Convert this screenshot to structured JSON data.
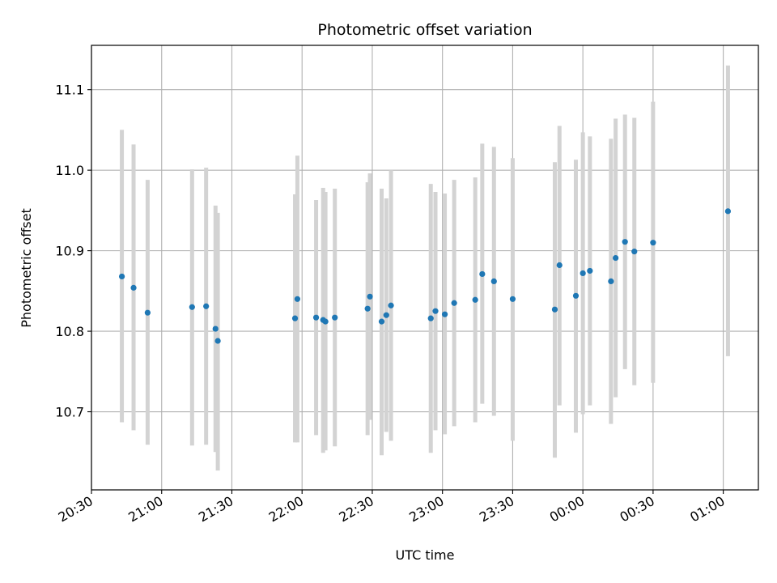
{
  "chart_data": {
    "type": "scatter",
    "title": "Photometric offset variation",
    "xlabel": "UTC time",
    "ylabel": "Photometric offset",
    "xlim": [
      "20:30",
      "01:15"
    ],
    "ylim": [
      10.603,
      11.155
    ],
    "grid": true,
    "marker_color": "#1f77b4",
    "errorbar_color": "#d3d3d3",
    "x_ticks": [
      "20:30",
      "21:00",
      "21:30",
      "22:00",
      "22:30",
      "23:00",
      "23:30",
      "00:00",
      "00:30",
      "01:00"
    ],
    "y_ticks": [
      10.7,
      10.8,
      10.9,
      11.0,
      11.1
    ],
    "points": [
      {
        "x": "20:43",
        "y": 10.868,
        "ylo": 10.687,
        "yhi": 11.05
      },
      {
        "x": "20:48",
        "y": 10.854,
        "ylo": 10.677,
        "yhi": 11.032
      },
      {
        "x": "20:54",
        "y": 10.823,
        "ylo": 10.659,
        "yhi": 10.988
      },
      {
        "x": "21:13",
        "y": 10.83,
        "ylo": 10.658,
        "yhi": 11.001
      },
      {
        "x": "21:19",
        "y": 10.831,
        "ylo": 10.659,
        "yhi": 11.003
      },
      {
        "x": "21:23",
        "y": 10.803,
        "ylo": 10.65,
        "yhi": 10.956
      },
      {
        "x": "21:24",
        "y": 10.788,
        "ylo": 10.627,
        "yhi": 10.947
      },
      {
        "x": "21:57",
        "y": 10.816,
        "ylo": 10.662,
        "yhi": 10.97
      },
      {
        "x": "21:58",
        "y": 10.84,
        "ylo": 10.662,
        "yhi": 11.018
      },
      {
        "x": "22:06",
        "y": 10.817,
        "ylo": 10.671,
        "yhi": 10.963
      },
      {
        "x": "22:09",
        "y": 10.814,
        "ylo": 10.649,
        "yhi": 10.978
      },
      {
        "x": "22:10",
        "y": 10.812,
        "ylo": 10.652,
        "yhi": 10.973
      },
      {
        "x": "22:14",
        "y": 10.817,
        "ylo": 10.657,
        "yhi": 10.977
      },
      {
        "x": "22:28",
        "y": 10.828,
        "ylo": 10.671,
        "yhi": 10.985
      },
      {
        "x": "22:29",
        "y": 10.843,
        "ylo": 10.69,
        "yhi": 10.996
      },
      {
        "x": "22:34",
        "y": 10.812,
        "ylo": 10.646,
        "yhi": 10.977
      },
      {
        "x": "22:36",
        "y": 10.82,
        "ylo": 10.675,
        "yhi": 10.965
      },
      {
        "x": "22:38",
        "y": 10.832,
        "ylo": 10.664,
        "yhi": 11.0
      },
      {
        "x": "22:55",
        "y": 10.816,
        "ylo": 10.649,
        "yhi": 10.983
      },
      {
        "x": "22:57",
        "y": 10.825,
        "ylo": 10.677,
        "yhi": 10.973
      },
      {
        "x": "23:01",
        "y": 10.821,
        "ylo": 10.672,
        "yhi": 10.971
      },
      {
        "x": "23:05",
        "y": 10.835,
        "ylo": 10.682,
        "yhi": 10.988
      },
      {
        "x": "23:14",
        "y": 10.839,
        "ylo": 10.687,
        "yhi": 10.991
      },
      {
        "x": "23:17",
        "y": 10.871,
        "ylo": 10.71,
        "yhi": 11.033
      },
      {
        "x": "23:22",
        "y": 10.862,
        "ylo": 10.695,
        "yhi": 11.029
      },
      {
        "x": "23:30",
        "y": 10.84,
        "ylo": 10.664,
        "yhi": 11.015
      },
      {
        "x": "23:48",
        "y": 10.827,
        "ylo": 10.643,
        "yhi": 11.01
      },
      {
        "x": "23:50",
        "y": 10.882,
        "ylo": 10.708,
        "yhi": 11.055
      },
      {
        "x": "23:57",
        "y": 10.844,
        "ylo": 10.674,
        "yhi": 11.013
      },
      {
        "x": "00:00",
        "y": 10.872,
        "ylo": 10.697,
        "yhi": 11.047
      },
      {
        "x": "00:03",
        "y": 10.875,
        "ylo": 10.708,
        "yhi": 11.042
      },
      {
        "x": "00:12",
        "y": 10.862,
        "ylo": 10.685,
        "yhi": 11.039
      },
      {
        "x": "00:14",
        "y": 10.891,
        "ylo": 10.718,
        "yhi": 11.064
      },
      {
        "x": "00:18",
        "y": 10.911,
        "ylo": 10.753,
        "yhi": 11.069
      },
      {
        "x": "00:22",
        "y": 10.899,
        "ylo": 10.733,
        "yhi": 11.065
      },
      {
        "x": "00:30",
        "y": 10.91,
        "ylo": 10.736,
        "yhi": 11.085
      },
      {
        "x": "01:02",
        "y": 10.949,
        "ylo": 10.769,
        "yhi": 11.13
      }
    ]
  }
}
